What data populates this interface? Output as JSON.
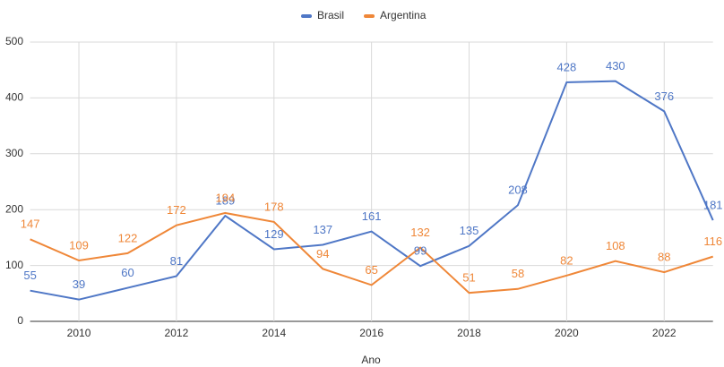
{
  "chart_data": {
    "type": "line",
    "x": [
      2009,
      2010,
      2011,
      2012,
      2013,
      2014,
      2015,
      2016,
      2017,
      2018,
      2019,
      2020,
      2021,
      2022,
      2023
    ],
    "series": [
      {
        "name": "Brasil",
        "color": "#4f77c6",
        "values": [
          55,
          39,
          60,
          81,
          189,
          129,
          137,
          161,
          99,
          135,
          208,
          428,
          430,
          376,
          181
        ]
      },
      {
        "name": "Argentina",
        "color": "#ef8738",
        "values": [
          147,
          109,
          122,
          172,
          194,
          178,
          94,
          65,
          132,
          51,
          58,
          82,
          108,
          88,
          116
        ]
      }
    ],
    "xlabel": "Ano",
    "xlim": [
      2009,
      2023
    ],
    "xticks": [
      2010,
      2012,
      2014,
      2016,
      2018,
      2020,
      2022
    ],
    "ylim": [
      0,
      500
    ],
    "yticks": [
      0,
      100,
      200,
      300,
      400,
      500
    ],
    "grid": true,
    "legend": "top"
  }
}
